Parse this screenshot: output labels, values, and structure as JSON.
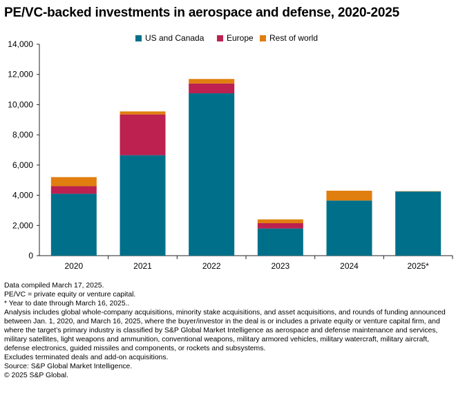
{
  "title": "PE/VC-backed investments in aerospace and defense, 2020-2025",
  "colors": {
    "us": "#00708A",
    "europe": "#BC2150",
    "row": "#E07E0F",
    "axis": "#222222",
    "grid": "#bbbbbb"
  },
  "chart_data": {
    "type": "bar",
    "stacked": true,
    "categories": [
      "2020",
      "2021",
      "2022",
      "2023",
      "2024",
      "2025*"
    ],
    "series": [
      {
        "name": "US and Canada",
        "values": [
          4100,
          6650,
          10750,
          1800,
          3650,
          4250
        ]
      },
      {
        "name": "Europe",
        "values": [
          500,
          2700,
          650,
          350,
          0,
          0
        ]
      },
      {
        "name": "Rest of world",
        "values": [
          600,
          200,
          300,
          250,
          650,
          20
        ]
      }
    ],
    "yticks": [
      "0",
      "2,000",
      "4,000",
      "6,000",
      "8,000",
      "10,000",
      "12,000",
      "14,000"
    ],
    "ylim": [
      0,
      14000
    ],
    "legend_position": "top-center",
    "grid": false
  },
  "notes": [
    "Data compiled March 17, 2025.",
    "PE/VC = private equity or venture capital.",
    "* Year to date through March 16, 2025..",
    "Analysis includes global whole-company acquisitions, minority stake acquisitions, and asset acquisitions, and rounds of funding announced between Jan. 1, 2020, and March 16, 2025, where the buyer/investor in the deal is or includes a private equity or venture capital firm, and where the target’s primary industry is classified by S&P Global Market Intelligence as aerospace and defense maintenance and services, military satellites, light weapons and ammunition, conventional weapons, military armored vehicles, military watercraft, military aircraft, defense electronics, guided missiles and components, or rockets and subsystems.",
    "Excludes terminated deals and add-on acquisitions.",
    "Source: S&P Global Market Intelligence.",
    "© 2025 S&P Global."
  ]
}
